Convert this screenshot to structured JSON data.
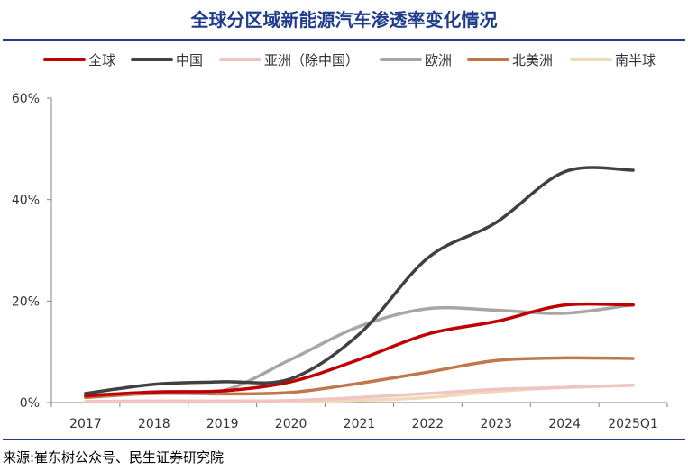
{
  "chart_data": {
    "type": "line",
    "title": "全球分区域新能源汽车渗透率变化情况",
    "categories": [
      "2017",
      "2018",
      "2019",
      "2020",
      "2021",
      "2022",
      "2023",
      "2024",
      "2025Q1"
    ],
    "y_ticks": [
      "0%",
      "20%",
      "40%",
      "60%"
    ],
    "ylim": [
      0,
      60
    ],
    "xlabel": "",
    "ylabel": "",
    "legend_position": "top",
    "series": [
      {
        "name": "全球",
        "color": "#c00000",
        "values": [
          1.3,
          2.1,
          2.3,
          4.1,
          8.5,
          13.5,
          16.0,
          19.2,
          19.2
        ]
      },
      {
        "name": "中国",
        "color": "#404040",
        "values": [
          1.8,
          3.6,
          4.1,
          4.7,
          13.5,
          28.5,
          35.5,
          45.5,
          45.8
        ]
      },
      {
        "name": "亚洲（除中国）",
        "color": "#f0c4c4",
        "values": [
          0.2,
          0.3,
          0.3,
          0.4,
          1.0,
          1.8,
          2.6,
          3.0,
          3.4
        ]
      },
      {
        "name": "欧洲",
        "color": "#a6a6a6",
        "values": [
          1.5,
          2.0,
          2.3,
          8.5,
          15.0,
          18.5,
          18.2,
          17.6,
          19.3
        ]
      },
      {
        "name": "北美洲",
        "color": "#c0784a",
        "values": [
          1.0,
          1.8,
          1.7,
          2.0,
          3.8,
          6.0,
          8.3,
          8.8,
          8.7
        ]
      },
      {
        "name": "南半球",
        "color": "#f1d9b8",
        "values": [
          0.1,
          0.1,
          0.1,
          0.2,
          0.4,
          1.0,
          2.2,
          3.0,
          3.4
        ]
      }
    ]
  },
  "source": "来源:崔东树公众号、民生证券研究院"
}
